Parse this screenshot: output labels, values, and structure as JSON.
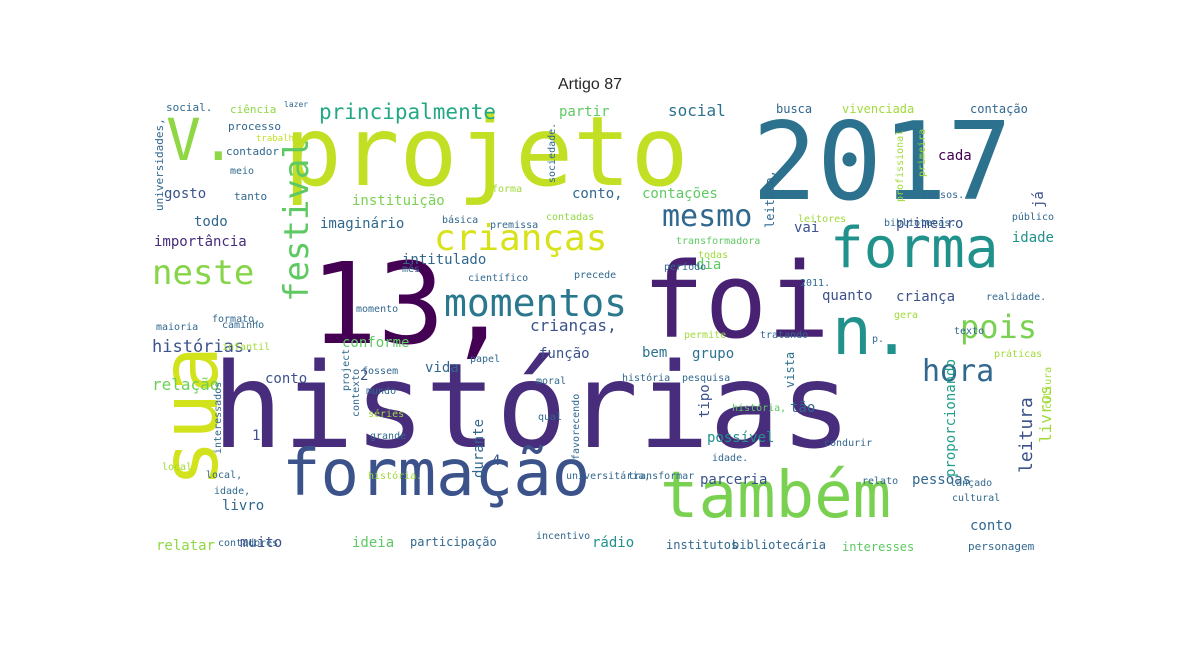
{
  "title": "Artigo 87",
  "words": [
    {
      "text": "histórias",
      "color": "#472d7b"
    },
    {
      "text": "2017",
      "color": "#2c728e"
    },
    {
      "text": "projeto",
      "color": "#c2df23"
    },
    {
      "text": "13,",
      "color": "#440154"
    },
    {
      "text": "foi",
      "color": "#482173"
    },
    {
      "text": "sua",
      "color": "#d2e21b"
    },
    {
      "text": "formação",
      "color": "#3b528b"
    },
    {
      "text": "também",
      "color": "#7ad151"
    },
    {
      "text": "forma",
      "color": "#21918c"
    },
    {
      "text": "n.",
      "color": "#21918c"
    },
    {
      "text": "V.",
      "color": "#8fd744"
    },
    {
      "text": "festival",
      "color": "#5ec962"
    },
    {
      "text": "momentos",
      "color": "#2a788e"
    },
    {
      "text": "crianças",
      "color": "#d8e219"
    },
    {
      "text": "neste",
      "color": "#86d549"
    },
    {
      "text": "mesmo",
      "color": "#31688e"
    },
    {
      "text": "pois",
      "color": "#7ad151"
    },
    {
      "text": "hora",
      "color": "#31688e"
    },
    {
      "text": "principalmente",
      "color": "#22a884"
    },
    {
      "text": "crianças,",
      "color": "#3b528b"
    },
    {
      "text": "histórias.",
      "color": "#3b528b"
    },
    {
      "text": "relação",
      "color": "#6ece58"
    },
    {
      "text": "leitura",
      "color": "#3b528b"
    },
    {
      "text": "livros",
      "color": "#a0da39"
    },
    {
      "text": "proporcionando",
      "color": "#1f9e89"
    },
    {
      "text": "social",
      "color": "#2c728e"
    },
    {
      "text": "partir",
      "color": "#5ec962"
    },
    {
      "text": "cada",
      "color": "#440154"
    },
    {
      "text": "primeiro",
      "color": "#3b528b"
    },
    {
      "text": "idade",
      "color": "#21918c"
    },
    {
      "text": "criança",
      "color": "#3b528b"
    },
    {
      "text": "quanto",
      "color": "#3b528b"
    },
    {
      "text": "conto",
      "color": "#3b528b"
    },
    {
      "text": "conto,",
      "color": "#31688e"
    },
    {
      "text": "contações",
      "color": "#5ec962"
    },
    {
      "text": "instituição",
      "color": "#7ad151"
    },
    {
      "text": "gosto",
      "color": "#3b528b"
    },
    {
      "text": "tanto",
      "color": "#31688e"
    },
    {
      "text": "todo",
      "color": "#31688e"
    },
    {
      "text": "importância",
      "color": "#472d7b"
    },
    {
      "text": "imaginário",
      "color": "#31688e"
    },
    {
      "text": "intitulado",
      "color": "#31688e"
    },
    {
      "text": "dia",
      "color": "#5ec962"
    },
    {
      "text": "vai",
      "color": "#3b528b"
    },
    {
      "text": "grupo",
      "color": "#2c728e"
    },
    {
      "text": "função",
      "color": "#3b528b"
    },
    {
      "text": "conforme",
      "color": "#5ec962"
    },
    {
      "text": "bem",
      "color": "#2c728e"
    },
    {
      "text": "vida",
      "color": "#31688e"
    },
    {
      "text": "tipo",
      "color": "#3b528b"
    },
    {
      "text": "tão",
      "color": "#31688e"
    },
    {
      "text": "possível",
      "color": "#21918c"
    },
    {
      "text": "vista",
      "color": "#2c728e"
    },
    {
      "text": "muito",
      "color": "#3b528b"
    },
    {
      "text": "ideia",
      "color": "#5ec962"
    },
    {
      "text": "rádio",
      "color": "#21918c"
    },
    {
      "text": "relatar",
      "color": "#8fd744"
    },
    {
      "text": "livro",
      "color": "#31688e"
    },
    {
      "text": "parceria",
      "color": "#3b528b"
    },
    {
      "text": "pessoas",
      "color": "#31688e"
    },
    {
      "text": "busca",
      "color": "#31688e"
    },
    {
      "text": "vivenciada",
      "color": "#a0da39"
    },
    {
      "text": "contação",
      "color": "#31688e"
    },
    {
      "text": "participação",
      "color": "#31688e"
    },
    {
      "text": "institutos",
      "color": "#31688e"
    },
    {
      "text": "bibliotecária",
      "color": "#31688e"
    },
    {
      "text": "interesses",
      "color": "#5ec962"
    },
    {
      "text": "personagem",
      "color": "#31688e"
    },
    {
      "text": "conto",
      "color": "#31688e"
    },
    {
      "text": "já",
      "color": "#3b528b"
    },
    {
      "text": "2",
      "color": "#3b528b"
    },
    {
      "text": "4",
      "color": "#3b528b"
    },
    {
      "text": "1",
      "color": "#3b528b"
    },
    {
      "text": "durante",
      "color": "#31688e"
    },
    {
      "text": "leitura,",
      "color": "#31688e"
    },
    {
      "text": "social.",
      "color": "#31688e"
    },
    {
      "text": "ciência",
      "color": "#8fd744"
    },
    {
      "text": "lazer",
      "color": "#31688e"
    },
    {
      "text": "processo",
      "color": "#31688e"
    },
    {
      "text": "trabalho",
      "color": "#c2df23"
    },
    {
      "text": "contador",
      "color": "#31688e"
    },
    {
      "text": "meio",
      "color": "#31688e"
    },
    {
      "text": "universidades,",
      "color": "#31688e"
    },
    {
      "text": "sociedade.",
      "color": "#31688e"
    },
    {
      "text": "básica",
      "color": "#31688e"
    },
    {
      "text": "premissa",
      "color": "#31688e"
    },
    {
      "text": "contadas",
      "color": "#8fd744"
    },
    {
      "text": "forma",
      "color": "#a0da39"
    },
    {
      "text": "período",
      "color": "#31688e"
    },
    {
      "text": "transformadora",
      "color": "#5ec962"
    },
    {
      "text": "todas",
      "color": "#a0da39"
    },
    {
      "text": "precede",
      "color": "#31688e"
    },
    {
      "text": "científico",
      "color": "#31688e"
    },
    {
      "text": "2011.",
      "color": "#31688e"
    },
    {
      "text": "formato,",
      "color": "#31688e"
    },
    {
      "text": "momento",
      "color": "#31688e"
    },
    {
      "text": "maioria",
      "color": "#31688e"
    },
    {
      "text": "caminho",
      "color": "#31688e"
    },
    {
      "text": "infantil",
      "color": "#a0da39"
    },
    {
      "text": "project",
      "color": "#31688e"
    },
    {
      "text": "papel",
      "color": "#31688e"
    },
    {
      "text": "permite",
      "color": "#a0da39"
    },
    {
      "text": "tratando",
      "color": "#31688e"
    },
    {
      "text": "gera",
      "color": "#a0da39"
    },
    {
      "text": "texto",
      "color": "#31688e"
    },
    {
      "text": "práticas",
      "color": "#a0da39"
    },
    {
      "text": "realidade.",
      "color": "#31688e"
    },
    {
      "text": "leitores",
      "color": "#a0da39"
    },
    {
      "text": "bibliotecas.",
      "color": "#31688e"
    },
    {
      "text": "público",
      "color": "#31688e"
    },
    {
      "text": "idosos.",
      "color": "#31688e"
    },
    {
      "text": "profissional",
      "color": "#a0da39"
    },
    {
      "text": "primeira",
      "color": "#a0da39"
    },
    {
      "text": "interessados",
      "color": "#31688e"
    },
    {
      "text": "contexto",
      "color": "#31688e"
    },
    {
      "text": "fossem",
      "color": "#31688e"
    },
    {
      "text": "mundo",
      "color": "#31688e"
    },
    {
      "text": "séries",
      "color": "#a0da39"
    },
    {
      "text": "moral",
      "color": "#31688e"
    },
    {
      "text": "história,",
      "color": "#5ec962"
    },
    {
      "text": "história",
      "color": "#31688e"
    },
    {
      "text": "pesquisa",
      "color": "#31688e"
    },
    {
      "text": "favorecendo",
      "color": "#31688e"
    },
    {
      "text": "qual",
      "color": "#31688e"
    },
    {
      "text": "grande",
      "color": "#31688e"
    },
    {
      "text": "idade.",
      "color": "#31688e"
    },
    {
      "text": "condurir",
      "color": "#31688e"
    },
    {
      "text": "local",
      "color": "#a0da39"
    },
    {
      "text": "local,",
      "color": "#31688e"
    },
    {
      "text": "história.",
      "color": "#a0da39"
    },
    {
      "text": "universitária,",
      "color": "#31688e"
    },
    {
      "text": "transformar",
      "color": "#31688e"
    },
    {
      "text": "relato",
      "color": "#31688e"
    },
    {
      "text": "lançado",
      "color": "#31688e"
    },
    {
      "text": "cultural",
      "color": "#31688e"
    },
    {
      "text": "incentivo",
      "color": "#31688e"
    },
    {
      "text": "cultura",
      "color": "#a0da39"
    },
    {
      "text": "contadores",
      "color": "#31688e"
    },
    {
      "text": "idade,",
      "color": "#31688e"
    },
    {
      "text": "mês",
      "color": "#31688e"
    },
    {
      "text": "p.",
      "color": "#31688e"
    },
    {
      "text": "in",
      "color": "#31688e"
    }
  ]
}
